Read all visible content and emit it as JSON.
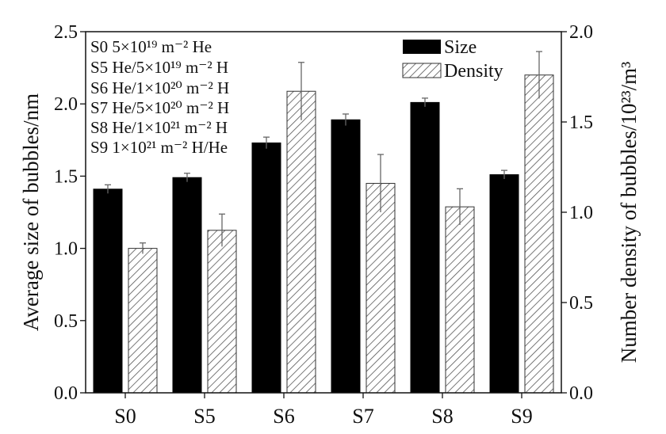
{
  "chart_data": {
    "type": "bar",
    "categories": [
      "S0",
      "S5",
      "S6",
      "S7",
      "S8",
      "S9"
    ],
    "series": [
      {
        "name": "Size",
        "axis": "left",
        "fill": "solid-black",
        "values": [
          1.41,
          1.49,
          1.73,
          1.89,
          2.01,
          1.51
        ],
        "errors": [
          0.03,
          0.03,
          0.04,
          0.04,
          0.03,
          0.03
        ]
      },
      {
        "name": "Density",
        "axis": "right",
        "fill": "diagonal-hatch",
        "values": [
          0.8,
          0.9,
          1.67,
          1.16,
          1.03,
          1.76
        ],
        "errors": [
          0.03,
          0.09,
          0.16,
          0.16,
          0.1,
          0.13
        ]
      }
    ],
    "ylabel": "Average size of  bubbles/nm",
    "ylim": [
      0,
      2.5
    ],
    "yticks": [
      "0.0",
      "0.5",
      "1.0",
      "1.5",
      "2.0",
      "2.5"
    ],
    "y2label": "Number density of  bubbles/10²³/m³",
    "y2lim": [
      0,
      2.0
    ],
    "y2ticks": [
      "0.0",
      "0.5",
      "1.0",
      "1.5",
      "2.0"
    ],
    "legend_position": "top-right",
    "annotations": [
      "S0 5×10¹⁹ m⁻² He",
      "S5 He/5×10¹⁹ m⁻² H",
      "S6 He/1×10²⁰ m⁻² H",
      "S7 He/5×10²⁰ m⁻² H",
      "S8 He/1×10²¹ m⁻² H",
      "S9 1×10²¹ m⁻² H/He"
    ],
    "grid": false,
    "colors": {
      "axis": "#111111",
      "bar": "#000000",
      "hatch": "#555555",
      "error": "#666666"
    }
  }
}
